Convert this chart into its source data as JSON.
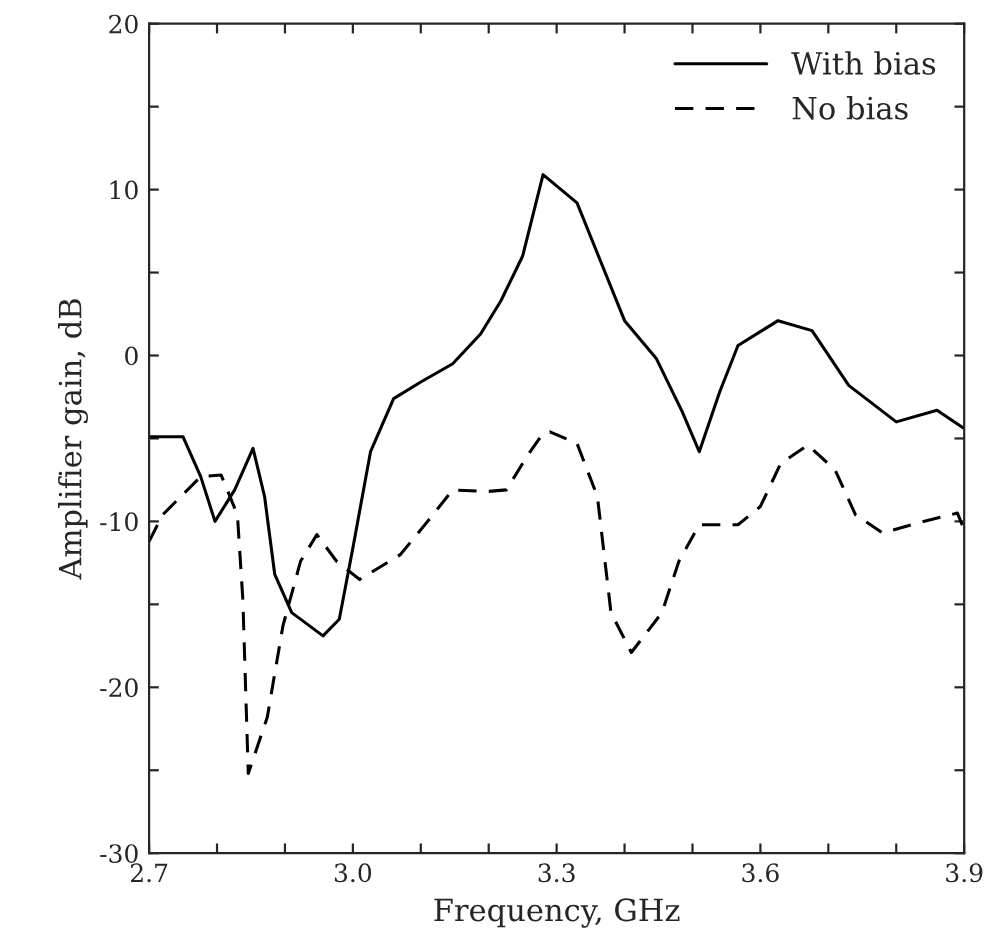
{
  "chart_data": {
    "type": "line",
    "xlabel": "Frequency, GHz",
    "ylabel": "Amplifier gain, dB",
    "xlim": [
      2.7,
      3.9
    ],
    "ylim": [
      -30,
      20
    ],
    "xticks": [
      {
        "value": 2.7,
        "label": "2.7"
      },
      {
        "value": 2.8,
        "label": null
      },
      {
        "value": 2.9,
        "label": null
      },
      {
        "value": 3.0,
        "label": "3.0"
      },
      {
        "value": 3.1,
        "label": null
      },
      {
        "value": 3.2,
        "label": null
      },
      {
        "value": 3.3,
        "label": "3.3"
      },
      {
        "value": 3.4,
        "label": null
      },
      {
        "value": 3.5,
        "label": null
      },
      {
        "value": 3.6,
        "label": "3.6"
      },
      {
        "value": 3.7,
        "label": null
      },
      {
        "value": 3.8,
        "label": null
      },
      {
        "value": 3.9,
        "label": "3.9"
      }
    ],
    "yticks": [
      -30,
      {
        "value": -25,
        "label": null
      },
      -20,
      {
        "value": -15,
        "label": null
      },
      -10,
      {
        "value": -5,
        "label": null
      },
      0,
      {
        "value": 5,
        "label": null
      },
      10,
      {
        "value": 15,
        "label": null
      },
      20
    ],
    "grid": false,
    "legend": "top right",
    "series": [
      {
        "name": "With bias",
        "color": "#000000",
        "line_style": "solid",
        "x": [
          2.7,
          2.75,
          2.776,
          2.797,
          2.826,
          2.853,
          2.87,
          2.885,
          2.91,
          2.956,
          2.98,
          3.0,
          3.026,
          3.06,
          3.1,
          3.147,
          3.188,
          3.218,
          3.25,
          3.28,
          3.33,
          3.4,
          3.447,
          3.485,
          3.51,
          3.54,
          3.567,
          3.626,
          3.676,
          3.73,
          3.8,
          3.86,
          3.9
        ],
        "values": [
          -4.9,
          -4.9,
          -7.3,
          -10,
          -8.1,
          -5.6,
          -8.5,
          -13.2,
          -15.5,
          -16.9,
          -15.9,
          -11.6,
          -5.8,
          -2.6,
          -1.6,
          -0.5,
          1.3,
          3.3,
          6.0,
          10.9,
          9.2,
          2.1,
          -0.2,
          -3.4,
          -5.8,
          -2.2,
          0.6,
          2.1,
          1.5,
          -1.8,
          -4.0,
          -3.3,
          -4.4
        ]
      },
      {
        "name": "No bias",
        "color": "#000000",
        "line_style": "dashed",
        "x": [
          2.7,
          2.72,
          2.776,
          2.806,
          2.83,
          2.838,
          2.846,
          2.874,
          2.897,
          2.923,
          2.947,
          2.976,
          3.01,
          3.07,
          3.11,
          3.147,
          3.197,
          3.226,
          3.256,
          3.28,
          3.29,
          3.33,
          3.36,
          3.38,
          3.41,
          3.455,
          3.48,
          3.51,
          3.567,
          3.6,
          3.63,
          3.67,
          3.71,
          3.74,
          3.78,
          3.84,
          3.89,
          3.9
        ],
        "values": [
          -11.2,
          -9.6,
          -7.3,
          -7.2,
          -9.6,
          -14.7,
          -25.2,
          -21.8,
          -16.3,
          -12.4,
          -10.8,
          -12.4,
          -13.5,
          -12.0,
          -10.0,
          -8.1,
          -8.2,
          -8.1,
          -6.1,
          -4.7,
          -4.6,
          -5.3,
          -8.5,
          -15.5,
          -17.9,
          -15.5,
          -12.4,
          -10.2,
          -10.2,
          -9.1,
          -6.5,
          -5.4,
          -6.9,
          -9.6,
          -10.7,
          -10.0,
          -9.5,
          -10.5
        ]
      }
    ]
  }
}
